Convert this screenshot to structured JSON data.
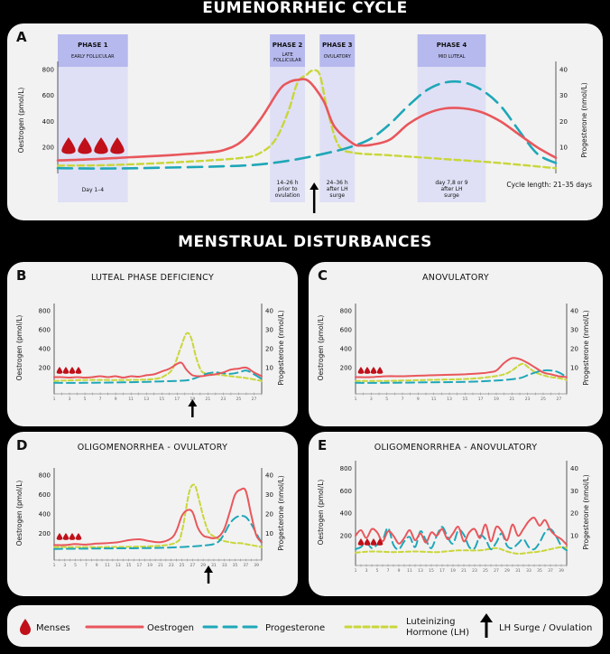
{
  "banners": {
    "top": "EUMENORRHEIC CYCLE",
    "middle": "MENSTRUAL DISTURBANCES"
  },
  "colors": {
    "oestrogen": "#e8575c",
    "progesterone": "#1fa7b8",
    "lh": "#c9d63a",
    "menses": "#c0101a",
    "phase_band": "#dfe0f5",
    "phase_head": "#b6b9ee"
  },
  "chart_data": [
    {
      "id": "A",
      "type": "line",
      "label": "A",
      "title": "",
      "y_left": {
        "label": "Oestrogen (pmol/L)",
        "ticks": [
          "200",
          "400",
          "600",
          "800"
        ],
        "range": [
          0,
          820
        ]
      },
      "y_right": {
        "label": "Progesterone (nmol/L)",
        "ticks": [
          "10",
          "20",
          "30",
          "40"
        ],
        "range": [
          0,
          41
        ]
      },
      "x_range": [
        1,
        28
      ],
      "menses_count": 4,
      "phases": [
        {
          "head": "PHASE 1",
          "sub": "EARLY FOLLICULAR",
          "note": "Day 1–4",
          "x0": 1,
          "x1": 4.8
        },
        {
          "head": "PHASE 2",
          "sub": "LATE FOLLICULAR",
          "note": "14–26 h prior to ovulation",
          "x0": 12.5,
          "x1": 14.4
        },
        {
          "head": "PHASE 3",
          "sub": "OVULATORY",
          "note": "24–36 h after LH surge",
          "x0": 15.2,
          "x1": 17.1
        },
        {
          "head": "PHASE 4",
          "sub": "MID LUTEAL",
          "note": "day 7,8 or 9 after LH surge",
          "x0": 20.5,
          "x1": 24.2
        }
      ],
      "surge_day": 14.9,
      "cycle_note": "Cycle length: 21–35 days",
      "series": [
        {
          "name": "Oestrogen",
          "axis": "left",
          "x": [
            1,
            3,
            5,
            7,
            9,
            10,
            11,
            12,
            13,
            13.5,
            14,
            14.6,
            15.4,
            16,
            17,
            17.5,
            18,
            19,
            20,
            21,
            22,
            23,
            24,
            25,
            26,
            27,
            28
          ],
          "values": [
            100,
            110,
            125,
            140,
            160,
            180,
            250,
            420,
            640,
            700,
            720,
            710,
            560,
            360,
            230,
            215,
            220,
            260,
            380,
            460,
            500,
            500,
            470,
            400,
            300,
            200,
            120
          ]
        },
        {
          "name": "Progesterone",
          "axis": "left",
          "x": [
            1,
            4,
            7,
            10,
            12,
            14,
            16,
            17,
            18,
            19,
            20,
            21,
            22,
            23,
            24,
            25,
            26,
            27,
            28
          ],
          "values": [
            40,
            38,
            45,
            55,
            70,
            110,
            170,
            210,
            270,
            380,
            520,
            640,
            700,
            700,
            640,
            520,
            330,
            150,
            80
          ]
        },
        {
          "name": "LH",
          "axis": "left",
          "x": [
            1,
            4,
            8,
            11,
            12,
            12.8,
            13.5,
            14,
            14.5,
            14.8,
            15.2,
            15.6,
            16.2,
            17,
            19,
            22,
            25,
            28
          ],
          "values": [
            60,
            65,
            90,
            120,
            160,
            260,
            480,
            700,
            760,
            790,
            760,
            500,
            220,
            160,
            140,
            110,
            80,
            40
          ]
        }
      ]
    },
    {
      "id": "B",
      "type": "line",
      "label": "B",
      "title": "LUTEAL PHASE DEFICIENCY",
      "y_left": {
        "label": "Oestrogen (pmol/L)",
        "ticks": [
          "200",
          "400",
          "600",
          "800"
        ],
        "range": [
          0,
          820
        ]
      },
      "y_right": {
        "label": "Progesterone (nmol/L)",
        "ticks": [
          "10",
          "20",
          "30",
          "40"
        ],
        "range": [
          0,
          41
        ]
      },
      "x_ticks": [
        "1",
        "3",
        "5",
        "7",
        "9",
        "11",
        "13",
        "15",
        "17",
        "19",
        "21",
        "23",
        "25",
        "27"
      ],
      "x_range": [
        1,
        28
      ],
      "menses_count": 4,
      "surge_day": 19,
      "series": [
        {
          "name": "Oestrogen",
          "axis": "left",
          "x": [
            1,
            2,
            3,
            4,
            5,
            6,
            7,
            8,
            9,
            10,
            11,
            12,
            13,
            14,
            15,
            16,
            17,
            17.6,
            18.2,
            19,
            20,
            21,
            22,
            23,
            24,
            25,
            26,
            27,
            28
          ],
          "values": [
            100,
            100,
            95,
            100,
            95,
            100,
            110,
            100,
            110,
            95,
            110,
            105,
            120,
            130,
            160,
            190,
            240,
            250,
            180,
            120,
            110,
            120,
            130,
            150,
            180,
            190,
            200,
            150,
            110
          ]
        },
        {
          "name": "Progesterone",
          "axis": "left",
          "x": [
            1,
            5,
            10,
            15,
            18,
            19,
            20,
            21,
            22,
            23,
            24,
            25,
            26,
            27,
            28
          ],
          "values": [
            40,
            40,
            45,
            55,
            65,
            80,
            110,
            140,
            150,
            140,
            135,
            150,
            170,
            130,
            80
          ]
        },
        {
          "name": "LH",
          "axis": "left",
          "x": [
            1,
            5,
            10,
            14,
            15.5,
            16.5,
            17.5,
            18.2,
            18.8,
            19.5,
            20.2,
            21,
            22,
            24,
            26,
            28
          ],
          "values": [
            60,
            70,
            70,
            80,
            120,
            200,
            420,
            560,
            520,
            300,
            160,
            140,
            130,
            110,
            90,
            60
          ]
        }
      ]
    },
    {
      "id": "C",
      "type": "line",
      "label": "C",
      "title": "ANOVULATORY",
      "y_left": {
        "label": "Oestrogen (pmol/L)",
        "ticks": [
          "200",
          "400",
          "600",
          "800"
        ],
        "range": [
          0,
          820
        ]
      },
      "y_right": {
        "label": "Progesterone (nmol/L)",
        "ticks": [
          "10",
          "20",
          "30",
          "40"
        ],
        "range": [
          0,
          41
        ]
      },
      "x_ticks": [
        "1",
        "3",
        "5",
        "7",
        "9",
        "11",
        "13",
        "15",
        "17",
        "19",
        "21",
        "23",
        "25",
        "27"
      ],
      "x_range": [
        1,
        28
      ],
      "menses_count": 4,
      "series": [
        {
          "name": "Oestrogen",
          "axis": "left",
          "x": [
            1,
            3,
            5,
            7,
            9,
            11,
            13,
            15,
            17,
            18,
            19,
            20,
            21,
            22,
            23,
            24,
            25,
            26,
            27,
            28
          ],
          "values": [
            100,
            100,
            110,
            110,
            115,
            120,
            125,
            130,
            140,
            150,
            170,
            250,
            300,
            290,
            250,
            200,
            150,
            130,
            110,
            100
          ]
        },
        {
          "name": "Progesterone",
          "axis": "left",
          "x": [
            1,
            5,
            10,
            15,
            18,
            20,
            22,
            23,
            24,
            25,
            26,
            27,
            28
          ],
          "values": [
            40,
            40,
            45,
            50,
            60,
            70,
            90,
            120,
            150,
            170,
            170,
            150,
            100
          ]
        },
        {
          "name": "LH",
          "axis": "left",
          "x": [
            1,
            5,
            10,
            15,
            18,
            20,
            21,
            22,
            22.5,
            23,
            24,
            25,
            26,
            27,
            28
          ],
          "values": [
            60,
            60,
            70,
            80,
            100,
            130,
            170,
            230,
            240,
            210,
            150,
            120,
            100,
            90,
            70
          ]
        }
      ]
    },
    {
      "id": "D",
      "type": "line",
      "label": "D",
      "title": "OLIGOMENORRHEA - OVULATORY",
      "y_left": {
        "label": "Oestrogen (pmol/L)",
        "ticks": [
          "200",
          "400",
          "600",
          "800"
        ],
        "range": [
          0,
          820
        ]
      },
      "y_right": {
        "label": "Progesterone (nmol/L)",
        "ticks": [
          "10",
          "20",
          "30",
          "40"
        ],
        "range": [
          0,
          41
        ]
      },
      "x_ticks": [
        "1",
        "3",
        "5",
        "7",
        "9",
        "11",
        "13",
        "15",
        "17",
        "19",
        "21",
        "23",
        "25",
        "27",
        "29",
        "31",
        "33",
        "35",
        "37",
        "39"
      ],
      "x_range": [
        1,
        40
      ],
      "menses_count": 4,
      "surge_day": 30,
      "series": [
        {
          "name": "Oestrogen",
          "axis": "left",
          "x": [
            1,
            3,
            5,
            7,
            9,
            11,
            13,
            15,
            17,
            19,
            21,
            23,
            24,
            25,
            26,
            27,
            28,
            29,
            30,
            31,
            32,
            33,
            34,
            35,
            36,
            37,
            38,
            39,
            40
          ],
          "values": [
            80,
            80,
            90,
            85,
            95,
            100,
            110,
            130,
            140,
            120,
            110,
            150,
            230,
            380,
            440,
            420,
            260,
            180,
            160,
            150,
            170,
            250,
            420,
            600,
            650,
            640,
            400,
            180,
            110
          ]
        },
        {
          "name": "Progesterone",
          "axis": "left",
          "x": [
            1,
            10,
            20,
            25,
            28,
            30,
            31,
            32,
            33,
            34,
            35,
            36,
            37,
            38,
            39,
            40
          ],
          "values": [
            40,
            45,
            50,
            60,
            70,
            80,
            90,
            120,
            200,
            300,
            360,
            380,
            370,
            300,
            200,
            100
          ]
        },
        {
          "name": "LH",
          "axis": "left",
          "x": [
            1,
            10,
            20,
            24,
            25,
            26,
            26.5,
            27,
            27.5,
            28,
            29,
            30,
            31,
            32,
            33,
            34,
            35,
            36,
            37,
            38,
            39,
            40
          ],
          "values": [
            60,
            60,
            70,
            110,
            220,
            520,
            650,
            700,
            690,
            600,
            380,
            220,
            170,
            140,
            120,
            110,
            100,
            100,
            90,
            80,
            70,
            60
          ]
        }
      ]
    },
    {
      "id": "E",
      "type": "line",
      "label": "E",
      "title": "OLIGOMENORRHEA - ANOVULATORY",
      "y_left": {
        "label": "Oestrogen (pmol/L)",
        "ticks": [
          "200",
          "400",
          "600",
          "800"
        ],
        "range": [
          0,
          820
        ]
      },
      "y_right": {
        "label": "Progesterone (nmol/L)",
        "ticks": [
          "10",
          "20",
          "30",
          "40"
        ],
        "range": [
          0,
          41
        ]
      },
      "x_ticks": [
        "1",
        "3",
        "5",
        "7",
        "9",
        "11",
        "13",
        "15",
        "17",
        "19",
        "21",
        "23",
        "25",
        "27",
        "29",
        "31",
        "33",
        "35",
        "37",
        "39"
      ],
      "x_range": [
        1,
        40
      ],
      "menses_count": 4,
      "series": [
        {
          "name": "Oestrogen",
          "axis": "left",
          "x": [
            1,
            2,
            3,
            4,
            5,
            6,
            7,
            8,
            9,
            10,
            11,
            12,
            13,
            14,
            15,
            16,
            17,
            18,
            19,
            20,
            21,
            22,
            23,
            24,
            25,
            26,
            27,
            28,
            29,
            30,
            31,
            32,
            33,
            34,
            35,
            36,
            37,
            38,
            39,
            40
          ],
          "values": [
            200,
            250,
            180,
            260,
            230,
            150,
            240,
            200,
            130,
            180,
            250,
            160,
            220,
            140,
            230,
            200,
            260,
            170,
            220,
            280,
            150,
            230,
            260,
            180,
            300,
            150,
            280,
            240,
            160,
            300,
            200,
            260,
            330,
            360,
            290,
            340,
            250,
            200,
            170,
            120
          ]
        },
        {
          "name": "Progesterone",
          "axis": "left",
          "x": [
            1,
            2,
            3,
            4,
            5,
            6,
            7,
            8,
            9,
            10,
            11,
            12,
            13,
            14,
            15,
            16,
            17,
            18,
            19,
            20,
            21,
            22,
            23,
            24,
            25,
            26,
            27,
            28,
            29,
            30,
            31,
            32,
            33,
            34,
            35,
            36,
            37,
            38,
            39,
            40
          ],
          "values": [
            80,
            100,
            140,
            90,
            120,
            160,
            270,
            120,
            80,
            150,
            190,
            100,
            240,
            160,
            90,
            200,
            280,
            190,
            130,
            250,
            210,
            100,
            90,
            200,
            170,
            80,
            140,
            220,
            110,
            90,
            130,
            170,
            100,
            80,
            140,
            230,
            260,
            200,
            110,
            70
          ]
        },
        {
          "name": "LH",
          "axis": "left",
          "x": [
            1,
            4,
            8,
            12,
            16,
            20,
            24,
            27,
            29,
            31,
            33,
            35,
            37,
            39,
            40
          ],
          "values": [
            50,
            60,
            55,
            60,
            55,
            70,
            70,
            90,
            60,
            40,
            50,
            60,
            80,
            100,
            90
          ]
        }
      ]
    }
  ],
  "legend": {
    "menses": "Menses",
    "oestrogen": "Oestrogen",
    "progesterone": "Progesterone",
    "lh_line1": "Luteinizing",
    "lh_line2": "Hormone (LH)",
    "surge": "LH Surge / Ovulation"
  }
}
